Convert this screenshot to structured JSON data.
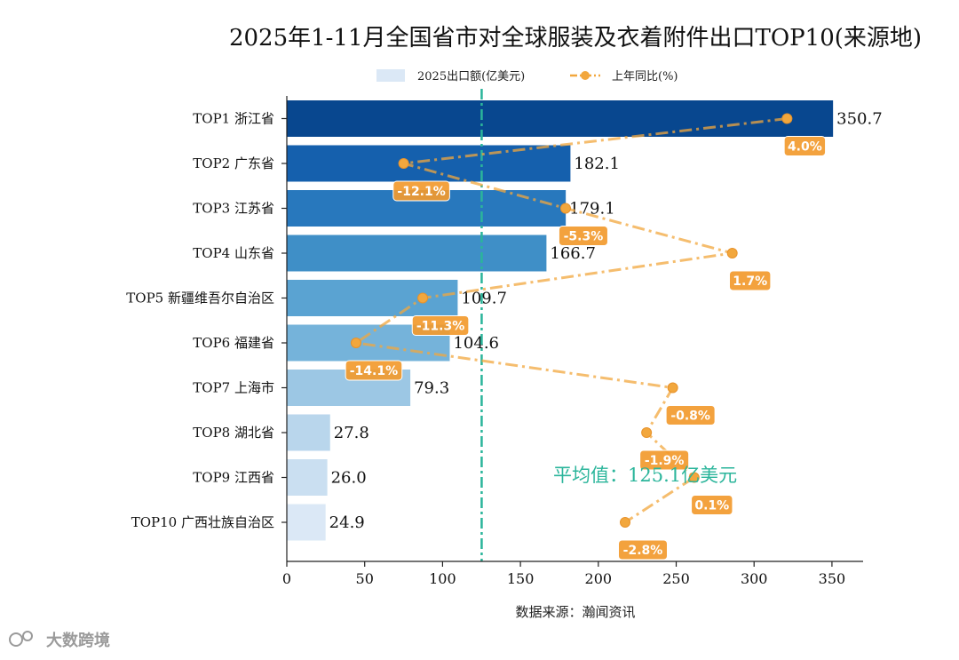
{
  "chart_data": {
    "type": "bar",
    "orientation": "horizontal",
    "title": "2025年1-11月全国省市对全球服装及衣着附件出口TOP10(来源地)",
    "categories": [
      "TOP1 浙江省",
      "TOP2 广东省",
      "TOP3 江苏省",
      "TOP4 山东省",
      "TOP5 新疆维吾尔自治区",
      "TOP6 福建省",
      "TOP7 上海市",
      "TOP8 湖北省",
      "TOP9 江西省",
      "TOP10 广西壮族自治区"
    ],
    "series": [
      {
        "name": "2025出口额(亿美元)",
        "type": "bar",
        "values": [
          350.7,
          182.1,
          179.1,
          166.7,
          109.7,
          104.6,
          79.3,
          27.8,
          26.0,
          24.9
        ],
        "value_labels": [
          "350.7",
          "182.1",
          "179.1",
          "166.7",
          "109.7",
          "104.6",
          "79.3",
          "27.8",
          "26.0",
          "24.9"
        ],
        "colors": [
          "#08478f",
          "#1560ad",
          "#2878bd",
          "#3f8fc7",
          "#5aa3d2",
          "#75b3da",
          "#9cc7e4",
          "#b9d6ec",
          "#cadff1",
          "#dbe8f6"
        ]
      },
      {
        "name": "上年同比(%)",
        "type": "line",
        "values": [
          4.0,
          -12.1,
          -5.3,
          1.7,
          -11.3,
          -14.1,
          -0.8,
          -1.9,
          0.1,
          -2.8
        ],
        "value_labels": [
          "4.0%",
          "-12.1%",
          "-5.3%",
          "1.7%",
          "-11.3%",
          "-14.1%",
          "-0.8%",
          "-1.9%",
          "0.1%",
          "-2.8%"
        ],
        "color": "#f2a73d"
      }
    ],
    "xlim": [
      0,
      370
    ],
    "xticks": [
      0,
      50,
      100,
      150,
      200,
      250,
      300,
      350
    ],
    "xtick_labels": [
      "0",
      "50",
      "100",
      "150",
      "200",
      "250",
      "300",
      "350"
    ],
    "yoy_range": [
      -16,
      6
    ],
    "average": 125.1,
    "average_label": "平均值：125.1亿美元",
    "legend": [
      "2025出口额(亿美元)",
      "上年同比(%)"
    ],
    "legend_position": "top",
    "xlabel": "数据来源：瀚闻资讯",
    "grid": false
  },
  "watermark": "大数跨境",
  "colors": {
    "avg_line": "#2bb59b",
    "yoy_line": "#f2a73d",
    "axis": "#222222"
  }
}
